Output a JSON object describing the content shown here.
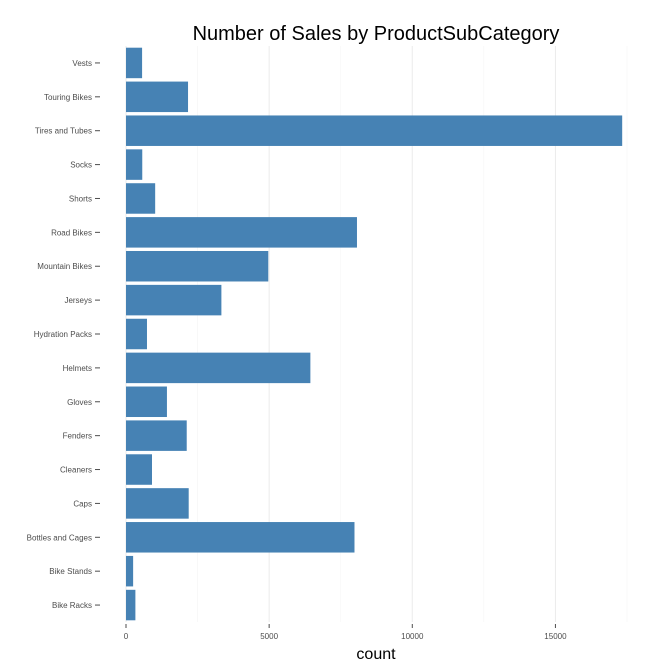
{
  "chart_data": {
    "type": "bar",
    "orientation": "horizontal",
    "title": "Number of Sales by ProductSubCategory",
    "xlabel": "count",
    "ylabel": "",
    "categories": [
      "Vests",
      "Touring Bikes",
      "Tires and Tubes",
      "Socks",
      "Shorts",
      "Road Bikes",
      "Mountain Bikes",
      "Jerseys",
      "Hydration Packs",
      "Helmets",
      "Gloves",
      "Fenders",
      "Cleaners",
      "Caps",
      "Bottles and Cages",
      "Bike Stands",
      "Bike Racks"
    ],
    "values": [
      562,
      2167,
      17332,
      568,
      1019,
      8068,
      4970,
      3332,
      733,
      6440,
      1430,
      2121,
      908,
      2190,
      7981,
      249,
      328
    ],
    "xlim": [
      0,
      17500
    ],
    "xticks": [
      0,
      5000,
      10000,
      15000
    ],
    "grid": true,
    "legend": "none",
    "colors": {
      "bar": "#4682b4",
      "grid": "#ebebeb",
      "tick": "#4d4d4d"
    }
  }
}
